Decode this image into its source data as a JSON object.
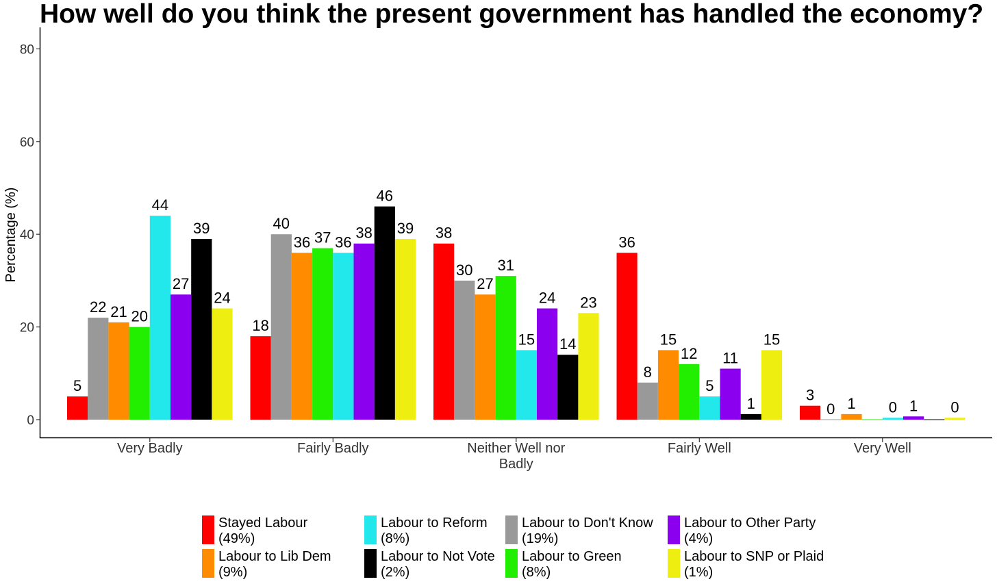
{
  "chart_data": {
    "type": "bar",
    "title": "How well do you think the present government has handled the economy?",
    "xlabel": "",
    "ylabel": "Percentage (%)",
    "ylim": [
      0,
      84
    ],
    "yticks": [
      0,
      20,
      40,
      60,
      80
    ],
    "categories": [
      [
        "Very Badly"
      ],
      [
        "Fairly Badly"
      ],
      [
        "Neither Well nor",
        "Badly"
      ],
      [
        "Fairly Well"
      ],
      [
        "Very Well"
      ]
    ],
    "series": [
      {
        "name": [
          "Stayed Labour",
          "(49%)"
        ],
        "color": "#ff0000",
        "values": [
          5,
          18,
          38,
          36,
          3
        ],
        "labels": [
          "5",
          "18",
          "38",
          "36",
          "3"
        ]
      },
      {
        "name": [
          "Labour to Don't Know",
          "(19%)"
        ],
        "color": "#999999",
        "values": [
          22,
          40,
          30,
          8,
          0
        ],
        "labels": [
          "22",
          "40",
          "30",
          "8",
          "0"
        ]
      },
      {
        "name": [
          "Labour to Lib Dem",
          "(9%)"
        ],
        "color": "#ff8c00",
        "values": [
          21,
          36,
          27,
          15,
          1.2
        ],
        "labels": [
          "21",
          "36",
          "27",
          "15",
          "1"
        ]
      },
      {
        "name": [
          "Labour to Green",
          "(8%)"
        ],
        "color": "#22ee00",
        "values": [
          20,
          37,
          31,
          12,
          0
        ],
        "labels": [
          "20",
          "37",
          "31",
          "12",
          ""
        ]
      },
      {
        "name": [
          "Labour to Reform",
          "(8%)"
        ],
        "color": "#22e8ec",
        "values": [
          44,
          36,
          15,
          5,
          0.4
        ],
        "labels": [
          "44",
          "36",
          "15",
          "5",
          "0"
        ]
      },
      {
        "name": [
          "Labour to Other Party",
          "(4%)"
        ],
        "color": "#8b00ee",
        "values": [
          27,
          38,
          24,
          11,
          0.7
        ],
        "labels": [
          "27",
          "38",
          "24",
          "11",
          "1"
        ]
      },
      {
        "name": [
          "Labour to Not Vote",
          "(2%)"
        ],
        "color": "#000000",
        "values": [
          39,
          46,
          14,
          1.2,
          0
        ],
        "labels": [
          "39",
          "46",
          "14",
          "1",
          ""
        ]
      },
      {
        "name": [
          "Labour to SNP or Plaid",
          "(1%)"
        ],
        "color": "#eeee11",
        "values": [
          24,
          39,
          23,
          15,
          0.4
        ],
        "labels": [
          "24",
          "39",
          "23",
          "15",
          "0"
        ]
      }
    ],
    "legend": {
      "position": "bottom",
      "order": [
        0,
        2,
        4,
        6,
        1,
        3,
        5,
        7
      ]
    },
    "grid": false
  }
}
